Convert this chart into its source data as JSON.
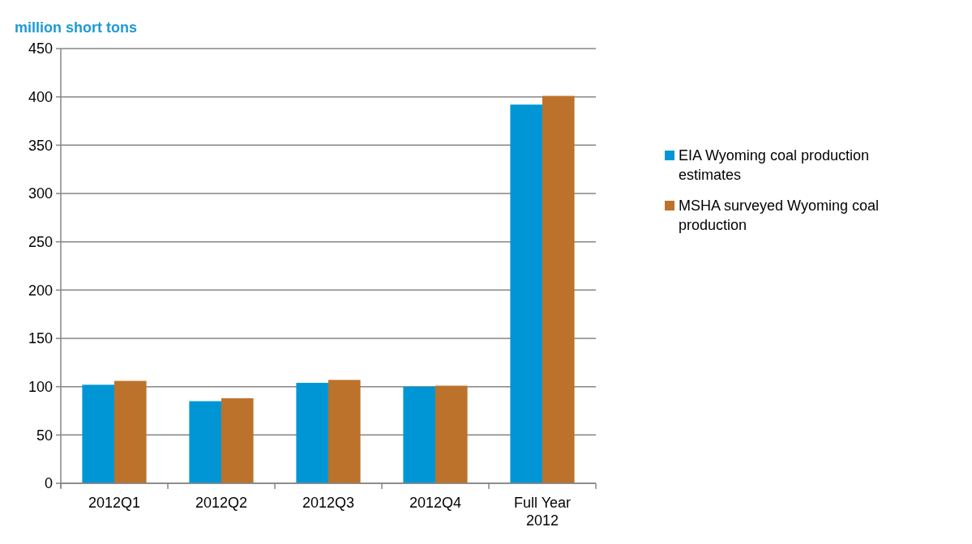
{
  "chart_data": {
    "type": "bar",
    "ylabel": "million short tons",
    "categories": [
      "2012Q1",
      "2012Q2",
      "2012Q3",
      "2012Q4",
      "Full Year 2012"
    ],
    "series": [
      {
        "name": "EIA Wyoming coal production estimates",
        "color": "#0096d6",
        "values": [
          102,
          85,
          104,
          100,
          392
        ]
      },
      {
        "name": "MSHA surveyed Wyoming coal production",
        "color": "#bc722b",
        "values": [
          106,
          88,
          107,
          101,
          401
        ]
      }
    ],
    "ylim": [
      0,
      450
    ],
    "yticks": [
      0,
      50,
      100,
      150,
      200,
      250,
      300,
      350,
      400,
      450
    ],
    "grid": "y",
    "legend": "right"
  }
}
